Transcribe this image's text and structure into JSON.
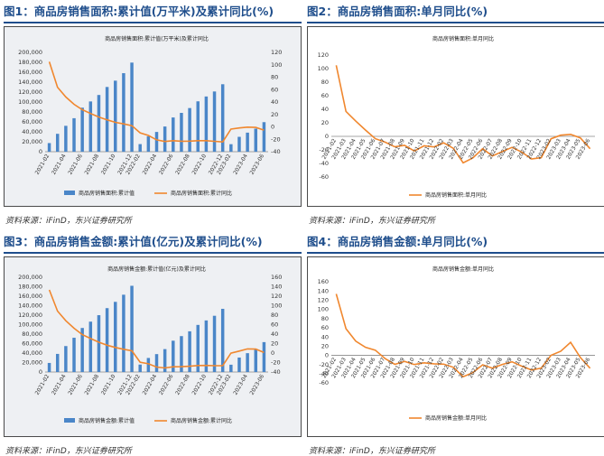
{
  "fig1": {
    "heading": "图1：商品房销售面积:累计值(万平米)及累计同比(%)",
    "source": "资料来源：iFinD，东兴证券研究所",
    "chart_data": {
      "type": "bar",
      "title": "商品房销售面积:累计值(万平米)及累计同比",
      "x": [
        "2021-02",
        "2021-03",
        "2021-04",
        "2021-05",
        "2021-06",
        "2021-07",
        "2021-08",
        "2021-09",
        "2021-10",
        "2021-11",
        "2021-12",
        "2022-02",
        "2022-03",
        "2022-04",
        "2022-05",
        "2022-06",
        "2022-07",
        "2022-08",
        "2022-09",
        "2022-10",
        "2022-11",
        "2022-12",
        "2023-02",
        "2023-03",
        "2023-04",
        "2023-05",
        "2023-06"
      ],
      "xticks": [
        "2021-02",
        "2021-04",
        "2021-06",
        "2021-08",
        "2021-10",
        "2021-12",
        "2022-02",
        "2022-04",
        "2022-06",
        "2022-08",
        "2022-10",
        "2022-12",
        "2023-02",
        "2023-04",
        "2023-06"
      ],
      "ylim": [
        0,
        200000
      ],
      "yticks": [
        0,
        20000,
        40000,
        60000,
        80000,
        100000,
        120000,
        140000,
        160000,
        180000,
        200000
      ],
      "y2lim": [
        -40,
        120
      ],
      "y2ticks": [
        -40,
        -20,
        0,
        20,
        40,
        60,
        80,
        100,
        120
      ],
      "series": [
        {
          "name": "商品房销售面积:累计值",
          "axis": "left",
          "color": "#4a86c8",
          "values": [
            17363,
            36007,
            52104,
            67420,
            88635,
            101179,
            114193,
            130332,
            143041,
            158120,
            179433,
            15303,
            31046,
            39768,
            50738,
            68923,
            78178,
            87890,
            101422,
            111179,
            121250,
            135837,
            15133,
            29946,
            38379,
            46440,
            59515
          ]
        },
        {
          "name": "商品房销售面积:累计同比",
          "axis": "right",
          "color": "#f0872e",
          "values": [
            104.9,
            63.8,
            48.1,
            36.3,
            27.7,
            21.5,
            15.9,
            11.3,
            7.3,
            4.8,
            1.9,
            -9.6,
            -13.8,
            -20.9,
            -23.6,
            -22.2,
            -23.1,
            -23.0,
            -22.2,
            -22.3,
            -23.3,
            -24.3,
            -3.6,
            -1.8,
            -0.4,
            -0.9,
            -5.3
          ]
        }
      ]
    }
  },
  "fig2": {
    "heading": "图2：商品房销售面积:单月同比(%)",
    "source": "资料来源：iFinD，东兴证券研究所",
    "chart_data": {
      "type": "line",
      "title": "商品房销售面积:单月同比",
      "x": [
        "2021-02",
        "2021-03",
        "2021-04",
        "2021-05",
        "2021-06",
        "2021-07",
        "2021-08",
        "2021-09",
        "2021-10",
        "2021-11",
        "2021-12",
        "2022-02",
        "2022-03",
        "2022-04",
        "2022-05",
        "2022-06",
        "2022-07",
        "2022-08",
        "2022-09",
        "2022-10",
        "2022-11",
        "2022-12",
        "2023-02",
        "2023-03",
        "2023-04",
        "2023-05",
        "2023-06"
      ],
      "xticks": [
        "2021-02",
        "2021-03",
        "2021-04",
        "2021-05",
        "2021-06",
        "2021-07",
        "2021-08",
        "2021-09",
        "2021-10",
        "2021-11",
        "2021-12",
        "2022-02",
        "2022-03",
        "2022-04",
        "2022-05",
        "2022-06",
        "2022-07",
        "2022-08",
        "2022-09",
        "2022-10",
        "2022-11",
        "2022-12",
        "2023-02",
        "2023-03",
        "2023-04",
        "2023-05",
        "2023-06"
      ],
      "ylim": [
        -60,
        120
      ],
      "yticks": [
        -60,
        -40,
        -20,
        0,
        20,
        40,
        60,
        80,
        100,
        120
      ],
      "series": [
        {
          "name": "商品房销售面积:单月同比",
          "color": "#f0872e",
          "values": [
            104.9,
            36.8,
            22.6,
            9.2,
            -3.5,
            -8.5,
            -15.5,
            -13.2,
            -21.6,
            -14.0,
            -15.6,
            -9.6,
            -17.7,
            -39.0,
            -31.8,
            -18.3,
            -28.9,
            -22.6,
            -16.2,
            -23.2,
            -33.3,
            -31.5,
            -3.6,
            1.7,
            2.9,
            -2.2,
            -18.2
          ]
        }
      ]
    }
  },
  "fig3": {
    "heading": "图3：商品房销售金额:累计值(亿元)及累计同比(%)",
    "source": "资料来源：iFinD，东兴证券研究所",
    "chart_data": {
      "type": "bar",
      "title": "商品房销售金额:累计值(亿元)及累计同比",
      "x": [
        "2021-02",
        "2021-03",
        "2021-04",
        "2021-05",
        "2021-06",
        "2021-07",
        "2021-08",
        "2021-09",
        "2021-10",
        "2021-11",
        "2021-12",
        "2022-02",
        "2022-03",
        "2022-04",
        "2022-05",
        "2022-06",
        "2022-07",
        "2022-08",
        "2022-09",
        "2022-10",
        "2022-11",
        "2022-12",
        "2023-02",
        "2023-03",
        "2023-04",
        "2023-05",
        "2023-06"
      ],
      "xticks": [
        "2021-02",
        "2021-04",
        "2021-06",
        "2021-08",
        "2021-10",
        "2021-12",
        "2022-02",
        "2022-04",
        "2022-06",
        "2022-08",
        "2022-10",
        "2022-12",
        "2023-02",
        "2023-04",
        "2023-06"
      ],
      "ylim": [
        0,
        200000
      ],
      "yticks": [
        0,
        20000,
        40000,
        60000,
        80000,
        100000,
        120000,
        140000,
        160000,
        180000,
        200000
      ],
      "y2lim": [
        -40,
        160
      ],
      "y2ticks": [
        -40,
        -20,
        0,
        20,
        40,
        60,
        80,
        100,
        120,
        140,
        160
      ],
      "series": [
        {
          "name": "商品房销售金额:累计值",
          "axis": "left",
          "color": "#4a86c8",
          "values": [
            19151,
            38232,
            54775,
            72294,
            92931,
            106275,
            119907,
            134795,
            148025,
            163086,
            181930,
            15703,
            29655,
            37784,
            48337,
            66072,
            75763,
            85870,
            99380,
            108832,
            118648,
            133308,
            15449,
            30545,
            39750,
            48529,
            63092
          ]
        },
        {
          "name": "商品房销售金额:累计同比",
          "axis": "right",
          "color": "#f0872e",
          "values": [
            133.4,
            88.5,
            68.2,
            52.4,
            38.9,
            30.7,
            22.8,
            16.6,
            11.8,
            8.0,
            4.8,
            -19.3,
            -22.7,
            -29.5,
            -31.5,
            -28.9,
            -28.8,
            -27.9,
            -26.3,
            -26.1,
            -26.6,
            -26.7,
            -0.1,
            4.1,
            8.8,
            8.4,
            1.1
          ]
        }
      ]
    }
  },
  "fig4": {
    "heading": "图4：商品房销售金额:单月同比(%)",
    "source": "资料来源：iFinD，东兴证券研究所",
    "chart_data": {
      "type": "line",
      "title": "商品房销售金额:单月同比",
      "x": [
        "2021-02",
        "2021-03",
        "2021-04",
        "2021-05",
        "2021-06",
        "2021-07",
        "2021-08",
        "2021-09",
        "2021-10",
        "2021-11",
        "2021-12",
        "2022-02",
        "2022-03",
        "2022-04",
        "2022-05",
        "2022-06",
        "2022-07",
        "2022-08",
        "2022-09",
        "2022-10",
        "2022-11",
        "2022-12",
        "2023-02",
        "2023-03",
        "2023-04",
        "2023-05",
        "2023-06"
      ],
      "xticks": [
        "2021-02",
        "2021-03",
        "2021-04",
        "2021-05",
        "2021-06",
        "2021-07",
        "2021-08",
        "2021-09",
        "2021-10",
        "2021-11",
        "2021-12",
        "2022-02",
        "2022-03",
        "2022-04",
        "2022-05",
        "2022-06",
        "2022-07",
        "2022-08",
        "2022-09",
        "2022-10",
        "2022-11",
        "2022-12",
        "2023-02",
        "2023-03",
        "2023-04",
        "2023-05",
        "2023-06"
      ],
      "ylim": [
        -60,
        160
      ],
      "yticks": [
        -60,
        -40,
        -20,
        0,
        20,
        40,
        60,
        80,
        100,
        120,
        140,
        160
      ],
      "series": [
        {
          "name": "商品房销售金额:单月同比",
          "color": "#f0872e",
          "values": [
            133.4,
            57.9,
            30.8,
            17.1,
            11.1,
            -7.1,
            -19.7,
            -13.3,
            -20.2,
            -16.3,
            -18.6,
            -19.3,
            -26.2,
            -46.6,
            -37.7,
            -20.8,
            -28.2,
            -19.9,
            -14.2,
            -23.7,
            -32.2,
            -27.7,
            -0.1,
            8.8,
            28.1,
            -4.8,
            -28.1
          ]
        }
      ]
    }
  }
}
